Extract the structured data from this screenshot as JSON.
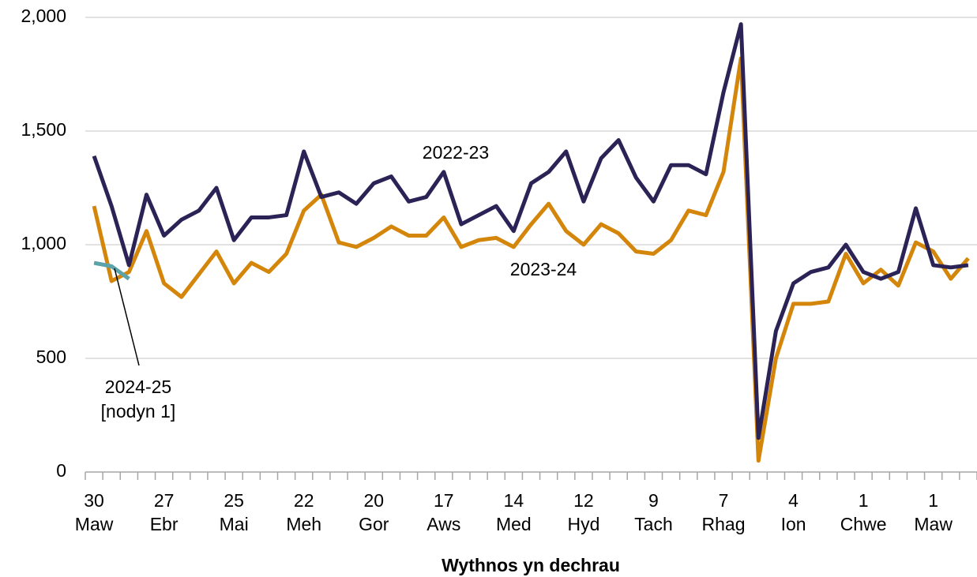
{
  "chart_data": {
    "type": "line",
    "x_label": "Wythnos yn dechrau",
    "categories": [
      [
        "30",
        "Maw"
      ],
      null,
      null,
      null,
      [
        "27",
        "Ebr"
      ],
      null,
      null,
      null,
      [
        "25",
        "Mai"
      ],
      null,
      null,
      null,
      [
        "22",
        "Meh"
      ],
      null,
      null,
      null,
      [
        "20",
        "Gor"
      ],
      null,
      null,
      null,
      [
        "17",
        "Aws"
      ],
      null,
      null,
      null,
      [
        "14",
        "Med"
      ],
      null,
      null,
      null,
      [
        "12",
        "Hyd"
      ],
      null,
      null,
      null,
      [
        "9",
        "Tach"
      ],
      null,
      null,
      null,
      [
        "7",
        "Rhag"
      ],
      null,
      null,
      null,
      [
        "4",
        "Ion"
      ],
      null,
      null,
      null,
      [
        "1",
        "Chwe"
      ],
      null,
      null,
      null,
      [
        "1",
        "Maw"
      ],
      null,
      null
    ],
    "series": [
      {
        "name": "2022-23",
        "color": "#2b2356",
        "values": [
          1390,
          1170,
          910,
          1220,
          1040,
          1110,
          1150,
          1250,
          1020,
          1120,
          1120,
          1130,
          1410,
          1210,
          1230,
          1180,
          1270,
          1300,
          1190,
          1210,
          1320,
          1090,
          1130,
          1170,
          1060,
          1270,
          1320,
          1410,
          1190,
          1380,
          1460,
          1295,
          1190,
          1350,
          1350,
          1310,
          1670,
          1970,
          150,
          620,
          830,
          880,
          900,
          1000,
          880,
          850,
          880,
          1160,
          910,
          900,
          910
        ]
      },
      {
        "name": "2023-24",
        "color": "#d4860b",
        "values": [
          1170,
          840,
          880,
          1060,
          830,
          770,
          870,
          970,
          830,
          920,
          880,
          960,
          1150,
          1220,
          1010,
          990,
          1030,
          1080,
          1040,
          1040,
          1120,
          990,
          1020,
          1030,
          990,
          1090,
          1180,
          1060,
          1000,
          1090,
          1050,
          970,
          960,
          1020,
          1150,
          1130,
          1320,
          1820,
          50,
          500,
          740,
          740,
          750,
          960,
          830,
          890,
          820,
          1010,
          970,
          850,
          940
        ]
      },
      {
        "name": "2024-25",
        "note": "[nodyn 1]",
        "color": "#5ba3a8",
        "values": [
          920,
          905,
          850,
          null,
          null,
          null,
          null,
          null,
          null,
          null,
          null,
          null,
          null,
          null,
          null,
          null,
          null,
          null,
          null,
          null,
          null,
          null,
          null,
          null,
          null,
          null,
          null,
          null,
          null,
          null,
          null,
          null,
          null,
          null,
          null,
          null,
          null,
          null,
          null,
          null,
          null,
          null,
          null,
          null,
          null,
          null,
          null,
          null,
          null,
          null,
          null
        ]
      }
    ],
    "ylim": [
      0,
      2000
    ],
    "yticks": [
      0,
      500,
      {
        "value": 1000,
        "label": "1,000"
      },
      {
        "value": 1500,
        "label": "1,500"
      },
      {
        "value": 2000,
        "label": "2,000"
      }
    ],
    "grid": true
  }
}
